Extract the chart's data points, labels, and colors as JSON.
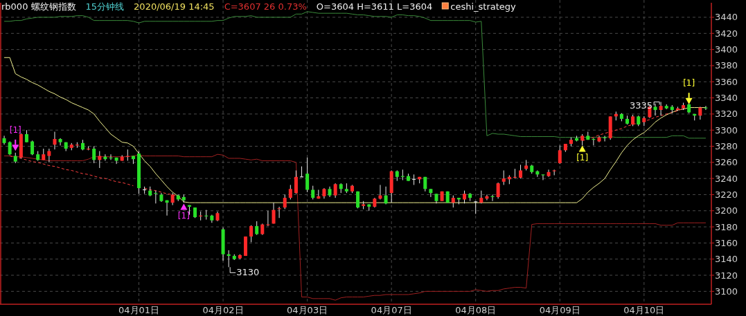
{
  "chart_data": {
    "type": "candlestick",
    "title": "rb000 螺纹钢指数",
    "subtitle": "15分钟线",
    "annotations": [
      "2020/06/19 14:45",
      "C=3607 26 0.73%",
      "O=3604 H=3611 L=3604",
      "ceshi_strategy",
      "3130",
      "3335"
    ],
    "categories": [
      null,
      null,
      null,
      null,
      null,
      null,
      null,
      null,
      null,
      null,
      null,
      null,
      null,
      null,
      null,
      null,
      null,
      null,
      null,
      null,
      null,
      null,
      null,
      null,
      "04月01日",
      null,
      null,
      null,
      null,
      null,
      null,
      null,
      null,
      null,
      null,
      null,
      null,
      null,
      null,
      "04月02日",
      null,
      null,
      null,
      null,
      null,
      null,
      null,
      null,
      null,
      null,
      null,
      null,
      null,
      null,
      "04月03日",
      null,
      null,
      null,
      null,
      null,
      null,
      null,
      null,
      null,
      null,
      null,
      null,
      null,
      null,
      "04月07日",
      null,
      null,
      null,
      null,
      null,
      null,
      null,
      null,
      null,
      null,
      null,
      null,
      null,
      null,
      "04月08日",
      null,
      null,
      null,
      null,
      null,
      null,
      null,
      null,
      null,
      null,
      null,
      null,
      null,
      null,
      "04月09日",
      null,
      null,
      null,
      null,
      null,
      null,
      null,
      null,
      null,
      null,
      null,
      null,
      null,
      null,
      "04月10日",
      null,
      null,
      null,
      null,
      null,
      null,
      null,
      null,
      null,
      null,
      null
    ],
    "ohlc": [
      [
        3290,
        3293,
        3282,
        3284
      ],
      [
        3285,
        3286,
        3269,
        3270
      ],
      [
        3268,
        3272,
        3259,
        3261
      ],
      [
        3266,
        3296,
        3265,
        3295
      ],
      [
        3295,
        3300,
        3285,
        3285
      ],
      [
        3286,
        3287,
        3269,
        3270
      ],
      [
        3270,
        3274,
        3262,
        3263
      ],
      [
        3263,
        3277,
        3263,
        3270
      ],
      [
        3268,
        3277,
        3260,
        3274
      ],
      [
        3282,
        3298,
        3276,
        3289
      ],
      [
        3289,
        3290,
        3281,
        3285
      ],
      [
        3285,
        3285,
        3274,
        3277
      ],
      [
        3278,
        3284,
        3275,
        3282
      ],
      [
        3281,
        3285,
        3278,
        3282
      ],
      [
        3284,
        3288,
        3275,
        3276
      ],
      [
        3276,
        3280,
        3275,
        3277
      ],
      [
        3277,
        3280,
        3259,
        3263
      ],
      [
        3263,
        3274,
        3253,
        3268
      ],
      [
        3267,
        3270,
        3262,
        3264
      ],
      [
        3266,
        3270,
        3263,
        3265
      ],
      [
        3266,
        3266,
        3258,
        3262
      ],
      [
        3262,
        3269,
        3262,
        3267
      ],
      [
        3267,
        3276,
        3262,
        3268
      ],
      [
        3268,
        3268,
        3258,
        3264
      ],
      [
        3271,
        3274,
        3221,
        3228
      ],
      [
        3226,
        3230,
        3221,
        3226
      ],
      [
        3225,
        3230,
        3218,
        3219
      ],
      [
        3222,
        3225,
        3209,
        3221
      ],
      [
        3220,
        3222,
        3211,
        3212
      ],
      [
        3213,
        3213,
        3194,
        3210
      ],
      [
        3210,
        3222,
        3207,
        3220
      ],
      [
        3219,
        3220,
        3212,
        3214
      ],
      [
        3217,
        3220,
        3210,
        3213
      ],
      [
        3207,
        3207,
        3195,
        3205
      ],
      [
        3204,
        3204,
        3191,
        3192
      ],
      [
        3193,
        3199,
        3188,
        3194
      ],
      [
        3194,
        3201,
        3189,
        3193
      ],
      [
        3194,
        3195,
        3185,
        3188
      ],
      [
        3188,
        3199,
        3187,
        3197
      ],
      [
        3177,
        3179,
        3138,
        3146
      ],
      [
        3146,
        3151,
        3130,
        3144
      ],
      [
        3144,
        3146,
        3139,
        3140
      ],
      [
        3141,
        3146,
        3140,
        3145
      ],
      [
        3144,
        3168,
        3144,
        3168
      ],
      [
        3168,
        3182,
        3161,
        3181
      ],
      [
        3181,
        3187,
        3170,
        3171
      ],
      [
        3171,
        3184,
        3170,
        3183
      ],
      [
        3182,
        3200,
        3181,
        3183
      ],
      [
        3184,
        3210,
        3184,
        3201
      ],
      [
        3202,
        3205,
        3191,
        3203
      ],
      [
        3204,
        3220,
        3202,
        3216
      ],
      [
        3216,
        3232,
        3214,
        3227
      ],
      [
        3222,
        3250,
        3221,
        3242
      ],
      [
        3242,
        3255,
        3242,
        3242
      ],
      [
        3246,
        3266,
        3223,
        3226
      ],
      [
        3226,
        3231,
        3214,
        3216
      ],
      [
        3215,
        3226,
        3215,
        3218
      ],
      [
        3218,
        3228,
        3215,
        3227
      ],
      [
        3227,
        3230,
        3217,
        3219
      ],
      [
        3219,
        3234,
        3216,
        3233
      ],
      [
        3233,
        3234,
        3222,
        3227
      ],
      [
        3227,
        3234,
        3222,
        3224
      ],
      [
        3224,
        3232,
        3222,
        3231
      ],
      [
        3224,
        3224,
        3203,
        3204
      ],
      [
        3206,
        3212,
        3202,
        3208
      ],
      [
        3208,
        3208,
        3200,
        3205
      ],
      [
        3205,
        3216,
        3204,
        3215
      ],
      [
        3215,
        3232,
        3214,
        3219
      ],
      [
        3219,
        3230,
        3208,
        3209
      ],
      [
        3222,
        3250,
        3210,
        3249
      ],
      [
        3249,
        3250,
        3237,
        3242
      ],
      [
        3243,
        3251,
        3238,
        3242
      ],
      [
        3243,
        3246,
        3237,
        3237
      ],
      [
        3239,
        3245,
        3232,
        3239
      ],
      [
        3239,
        3242,
        3234,
        3242
      ],
      [
        3242,
        3242,
        3224,
        3227
      ],
      [
        3227,
        3227,
        3217,
        3222
      ],
      [
        3221,
        3221,
        3209,
        3212
      ],
      [
        3212,
        3224,
        3212,
        3224
      ],
      [
        3224,
        3224,
        3210,
        3210
      ],
      [
        3210,
        3219,
        3204,
        3216
      ],
      [
        3216,
        3216,
        3208,
        3214
      ],
      [
        3214,
        3225,
        3209,
        3221
      ],
      [
        3221,
        3222,
        3212,
        3216
      ],
      [
        3211,
        3212,
        3196,
        3211
      ],
      [
        3210,
        3225,
        3209,
        3216
      ],
      [
        3215,
        3220,
        3213,
        3218
      ],
      [
        3218,
        3220,
        3212,
        3217
      ],
      [
        3217,
        3235,
        3215,
        3234
      ],
      [
        3236,
        3250,
        3232,
        3240
      ],
      [
        3239,
        3244,
        3233,
        3242
      ],
      [
        3241,
        3252,
        3240,
        3242
      ],
      [
        3241,
        3257,
        3240,
        3250
      ],
      [
        3252,
        3263,
        3250,
        3256
      ],
      [
        3256,
        3257,
        3246,
        3248
      ],
      [
        3249,
        3250,
        3242,
        3245
      ],
      [
        3245,
        3245,
        3238,
        3244
      ],
      [
        3243,
        3251,
        3242,
        3248
      ],
      [
        3249,
        3251,
        3244,
        3250
      ],
      [
        3259,
        3281,
        3258,
        3275
      ],
      [
        3275,
        3283,
        3273,
        3283
      ],
      [
        3283,
        3291,
        3280,
        3288
      ],
      [
        3290,
        3293,
        3286,
        3287
      ],
      [
        3287,
        3295,
        3281,
        3293
      ],
      [
        3293,
        3298,
        3288,
        3288
      ],
      [
        3289,
        3290,
        3281,
        3288
      ],
      [
        3286,
        3293,
        3285,
        3291
      ],
      [
        3291,
        3293,
        3286,
        3290
      ],
      [
        3290,
        3317,
        3288,
        3317
      ],
      [
        3317,
        3323,
        3312,
        3320
      ],
      [
        3320,
        3321,
        3311,
        3314
      ],
      [
        3314,
        3318,
        3307,
        3308
      ],
      [
        3307,
        3319,
        3305,
        3317
      ],
      [
        3317,
        3318,
        3305,
        3307
      ],
      [
        3310,
        3317,
        3305,
        3315
      ],
      [
        3316,
        3331,
        3315,
        3329
      ],
      [
        3329,
        3333,
        3318,
        3325
      ],
      [
        3325,
        3335,
        3318,
        3330
      ],
      [
        3330,
        3332,
        3326,
        3327
      ],
      [
        3329,
        3331,
        3321,
        3325
      ],
      [
        3325,
        3329,
        3324,
        3327
      ],
      [
        3327,
        3334,
        3325,
        3331
      ],
      [
        3332,
        3333,
        3321,
        3322
      ],
      [
        3320,
        3320,
        3312,
        3318
      ],
      [
        3318,
        3329,
        3313,
        3328
      ],
      [
        3328,
        3330,
        3325,
        3327
      ]
    ],
    "series": [
      {
        "type": "line",
        "color": "#3a8a3a",
        "values": [
          3435,
          3435,
          3436,
          3436,
          3438,
          3439,
          3440,
          3440,
          3440,
          3440,
          3441,
          3441,
          3441,
          3442,
          3442,
          3440,
          3436,
          3436,
          3436,
          3436,
          3436,
          3436,
          3436,
          3435,
          3433,
          3435,
          3435,
          3435,
          3435,
          3435,
          3435,
          3435,
          3435,
          3435,
          3435,
          3435,
          3435,
          3435,
          3436,
          3436,
          3439,
          3441,
          3441,
          3441,
          3442,
          3440,
          3440,
          3440,
          3440,
          3440,
          3440,
          3440,
          3444,
          3444,
          3447,
          3446,
          3445,
          3445,
          3445,
          3445,
          3445,
          3445,
          3444,
          3443,
          3443,
          3442,
          3441,
          3441,
          3441,
          3440,
          3443,
          3443,
          3442,
          3442,
          3441,
          3439,
          3436,
          3436,
          3436,
          3436,
          3436,
          3436,
          3436,
          3436,
          3434,
          3435,
          3293,
          3296,
          3295,
          3295,
          3294,
          3293,
          3292,
          3292,
          3292,
          3292,
          3292,
          3292,
          3292,
          3291,
          3291,
          3291,
          3291,
          3291,
          3291,
          3291,
          3291,
          3291,
          3292,
          3291,
          3291,
          3291,
          3291,
          3291,
          3291,
          3291,
          3291,
          3291,
          3291,
          3293,
          3293,
          3293,
          3290,
          3290,
          3290,
          3290
        ]
      },
      {
        "type": "line",
        "color": "#a02020",
        "values": [
          3268,
          3268,
          3267,
          3267,
          3266,
          3265,
          3264,
          3263,
          3262,
          3262,
          3262,
          3262,
          3262,
          3262,
          3262,
          3264,
          3267,
          3267,
          3267,
          3267,
          3267,
          3267,
          3267,
          3268,
          3269,
          3268,
          3268,
          3268,
          3268,
          3268,
          3268,
          3268,
          3267,
          3267,
          3267,
          3267,
          3267,
          3267,
          3270,
          3269,
          3265,
          3265,
          3265,
          3264,
          3263,
          3264,
          3262,
          3262,
          3262,
          3262,
          3262,
          3262,
          3260,
          3093,
          3093,
          3091,
          3091,
          3091,
          3091,
          3089,
          3092,
          3093,
          3093,
          3093,
          3093,
          3094,
          3095,
          3095,
          3096,
          3096,
          3096,
          3096,
          3096,
          3097,
          3098,
          3100,
          3100,
          3100,
          3100,
          3100,
          3100,
          3100,
          3100,
          3100,
          3102,
          3101,
          3100,
          3101,
          3101,
          3103,
          3104,
          3105,
          3105,
          3104,
          3183,
          3184,
          3184,
          3184,
          3184,
          3184,
          3184,
          3184,
          3184,
          3184,
          3184,
          3184,
          3184,
          3184,
          3184,
          3184,
          3184,
          3184,
          3184,
          3184,
          3184,
          3184,
          3184,
          3182,
          3182,
          3182,
          3185,
          3185,
          3185,
          3185,
          3185,
          3185
        ]
      },
      {
        "type": "line",
        "color": "#f0f090",
        "values": [
          3390,
          3390,
          3370,
          3366,
          3363,
          3359,
          3356,
          3352,
          3348,
          3345,
          3341,
          3338,
          3334,
          3331,
          3328,
          3325,
          3320,
          3311,
          3303,
          3295,
          3290,
          3285,
          3284,
          3280,
          3271,
          3262,
          3255,
          3246,
          3238,
          3230,
          3223,
          3218,
          3211,
          3210,
          3210,
          3210,
          3210,
          3210,
          3210,
          3210,
          3210,
          3210,
          3210,
          3210,
          3210,
          3210,
          3210,
          3210,
          3210,
          3210,
          3210,
          3210,
          3210,
          3210,
          3210,
          3210,
          3210,
          3210,
          3210,
          3210,
          3210,
          3210,
          3210,
          3210,
          3210,
          3210,
          3210,
          3210,
          3210,
          3210,
          3210,
          3210,
          3210,
          3210,
          3210,
          3210,
          3210,
          3210,
          3210,
          3210,
          3210,
          3210,
          3210,
          3210,
          3210,
          3210,
          3210,
          3210,
          3210,
          3210,
          3210,
          3210,
          3210,
          3210,
          3210,
          3210,
          3210,
          3210,
          3210,
          3210,
          3210,
          3210,
          3210,
          3215,
          3223,
          3229,
          3234,
          3240,
          3251,
          3261,
          3272,
          3281,
          3288,
          3293,
          3297,
          3303,
          3310,
          3315,
          3319,
          3322,
          3325,
          3326,
          3328,
          3328,
          3328,
          3328
        ]
      },
      {
        "type": "line",
        "color": "#ff4040",
        "line_style": "dashed",
        "values": [
          null,
          3268,
          3266,
          3265,
          3263,
          3261,
          3260,
          3258,
          3256,
          3255,
          3253,
          3251,
          3250,
          3248,
          3246,
          3245,
          3243,
          3241,
          3240,
          3238,
          3236,
          3235,
          3233,
          3231,
          null,
          3228,
          3226,
          3225,
          3223,
          3221,
          3220,
          3218,
          3216,
          null,
          null,
          null,
          null,
          null,
          null,
          null,
          null,
          null,
          null,
          null,
          null,
          null,
          null,
          null,
          null,
          null,
          null,
          null,
          null,
          null,
          null,
          null,
          null,
          null,
          null,
          null,
          null,
          null,
          null,
          null,
          null,
          null,
          null,
          null,
          null,
          null,
          null,
          null,
          null,
          null,
          null,
          null,
          null,
          null,
          null,
          null,
          null,
          null,
          null,
          null,
          null,
          null,
          null,
          null,
          null,
          null,
          null,
          null,
          null,
          null,
          null,
          null,
          null,
          null,
          null,
          null,
          null,
          null,
          null,
          null,
          null,
          null,
          null,
          null,
          null,
          null,
          null,
          null,
          null,
          null,
          null,
          null,
          null,
          null,
          null,
          null,
          null,
          null,
          null,
          null,
          null,
          null
        ]
      },
      {
        "type": "line",
        "color": "#ff4040",
        "line_style": "dashed",
        "values": [
          null,
          null,
          null,
          null,
          null,
          null,
          null,
          null,
          null,
          null,
          null,
          null,
          null,
          null,
          null,
          null,
          null,
          null,
          null,
          null,
          null,
          null,
          null,
          null,
          null,
          null,
          null,
          null,
          null,
          null,
          null,
          null,
          null,
          null,
          null,
          null,
          null,
          null,
          null,
          null,
          null,
          null,
          null,
          null,
          null,
          null,
          null,
          null,
          null,
          null,
          null,
          null,
          null,
          null,
          null,
          null,
          null,
          null,
          null,
          null,
          null,
          null,
          null,
          null,
          null,
          null,
          null,
          null,
          null,
          null,
          null,
          null,
          null,
          null,
          null,
          null,
          null,
          null,
          null,
          null,
          null,
          null,
          null,
          null,
          null,
          null,
          null,
          null,
          null,
          null,
          null,
          null,
          null,
          null,
          null,
          null,
          null,
          null,
          null,
          null,
          null,
          null,
          null,
          3287,
          3289,
          3291,
          3294,
          3296,
          3298,
          3300,
          3302,
          3305,
          3307,
          3309,
          3311,
          3313,
          3316,
          3318,
          3320,
          3322,
          3324,
          3327,
          null,
          null,
          null,
          null
        ]
      },
      {
        "type": "scatter",
        "name": "[1]",
        "color": "#ff30ff",
        "marker": "triangle",
        "values": [
          null,
          null,
          3278,
          null,
          null,
          null,
          null,
          null,
          null,
          null,
          null,
          null,
          null,
          null,
          null,
          null,
          null,
          null,
          null,
          null,
          null,
          null,
          null,
          null,
          null,
          null,
          null,
          null,
          null,
          null,
          null,
          null,
          3205,
          null,
          null,
          null,
          null,
          null,
          null,
          null,
          null,
          null,
          null,
          null,
          null,
          null,
          null,
          null,
          null,
          null,
          null,
          null,
          null,
          null,
          null,
          null,
          null,
          null,
          null,
          null,
          null,
          null,
          null,
          null,
          null,
          null,
          null,
          null,
          null,
          null,
          null,
          null,
          null,
          null,
          null,
          null,
          null,
          null,
          null,
          null,
          null,
          null,
          null,
          null,
          null,
          null,
          null,
          null,
          null,
          null,
          null,
          null,
          null,
          null,
          null,
          null,
          null,
          null,
          null,
          null,
          null,
          null,
          null,
          null,
          null,
          null,
          null,
          null,
          null,
          null,
          null,
          null,
          null,
          null,
          null,
          null,
          null,
          null,
          null,
          null,
          null,
          null,
          null,
          null,
          null,
          null
        ]
      },
      {
        "type": "scatter",
        "name": "[1]",
        "color": "#ffff30",
        "marker": "triangle",
        "values": [
          null,
          null,
          null,
          null,
          null,
          null,
          null,
          null,
          null,
          null,
          null,
          null,
          null,
          null,
          null,
          null,
          null,
          null,
          null,
          null,
          null,
          null,
          null,
          null,
          null,
          null,
          null,
          null,
          null,
          null,
          null,
          null,
          null,
          null,
          null,
          null,
          null,
          null,
          null,
          null,
          null,
          null,
          null,
          null,
          null,
          null,
          null,
          null,
          null,
          null,
          null,
          null,
          null,
          null,
          null,
          null,
          null,
          null,
          null,
          null,
          null,
          null,
          null,
          null,
          null,
          null,
          null,
          null,
          null,
          null,
          null,
          null,
          null,
          null,
          null,
          null,
          null,
          null,
          null,
          null,
          null,
          null,
          null,
          null,
          null,
          null,
          null,
          null,
          null,
          null,
          null,
          null,
          null,
          null,
          null,
          null,
          null,
          null,
          null,
          null,
          null,
          null,
          null,
          3277,
          null,
          null,
          null,
          null,
          null,
          null,
          null,
          null,
          null,
          null,
          null,
          null,
          null,
          null,
          null,
          null,
          null,
          null,
          3336,
          null,
          null,
          null
        ]
      }
    ],
    "ylim": [
      3084,
      3458
    ],
    "yticks": [
      3100,
      3120,
      3140,
      3160,
      3180,
      3200,
      3220,
      3240,
      3260,
      3280,
      3300,
      3320,
      3340,
      3360,
      3380,
      3400,
      3420,
      3440
    ],
    "grid": true
  }
}
